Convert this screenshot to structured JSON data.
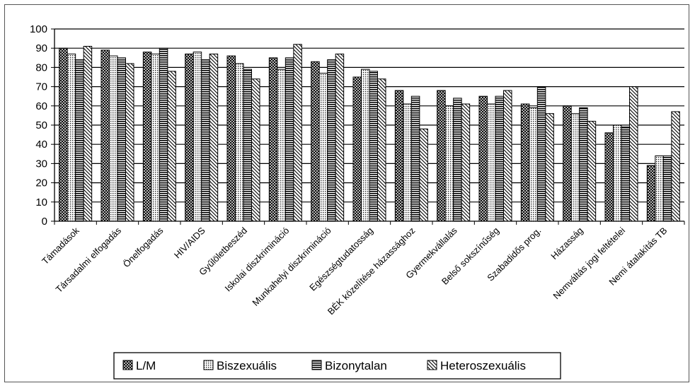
{
  "chart_data": {
    "type": "bar",
    "title": "",
    "xlabel": "",
    "ylabel": "",
    "ylim": [
      0,
      100
    ],
    "yticks": [
      0,
      10,
      20,
      30,
      40,
      50,
      60,
      70,
      80,
      90,
      100
    ],
    "grid": "horizontal",
    "legend_position": "bottom",
    "categories": [
      "Támadások",
      "Társadalmi elfogadás",
      "Önelfogadás",
      "HIV/AIDS",
      "Gyűlöletbeszéd",
      "Iskolai diszkrimináció",
      "Munkahelyi diszkrimináció",
      "Egészségtudatosság",
      "BÉK közelítése házassághoz",
      "Gyermekvállalás",
      "Belső sokszínűség",
      "Szabadidős prog.",
      "Házasság",
      "Nemváltás jogi feltételei",
      "Nemi átalakítás TB"
    ],
    "series": [
      {
        "name": "L/M",
        "pattern": "crosshatch",
        "values": [
          90,
          89,
          88,
          87,
          86,
          85,
          83,
          75,
          68,
          68,
          65,
          61,
          60,
          46,
          29
        ]
      },
      {
        "name": "Biszexuális",
        "pattern": "dots",
        "values": [
          87,
          86,
          87,
          88,
          82,
          79,
          77,
          79,
          61,
          60,
          61,
          59,
          56,
          50,
          34
        ]
      },
      {
        "name": "Bizonytalan",
        "pattern": "horizontal",
        "values": [
          84,
          85,
          90,
          84,
          79,
          85,
          84,
          78,
          65,
          64,
          65,
          70,
          59,
          49,
          34
        ]
      },
      {
        "name": "Heteroszexuális",
        "pattern": "diagonal",
        "values": [
          91,
          82,
          78,
          87,
          74,
          92,
          87,
          74,
          48,
          61,
          68,
          56,
          52,
          70,
          57
        ]
      }
    ]
  }
}
